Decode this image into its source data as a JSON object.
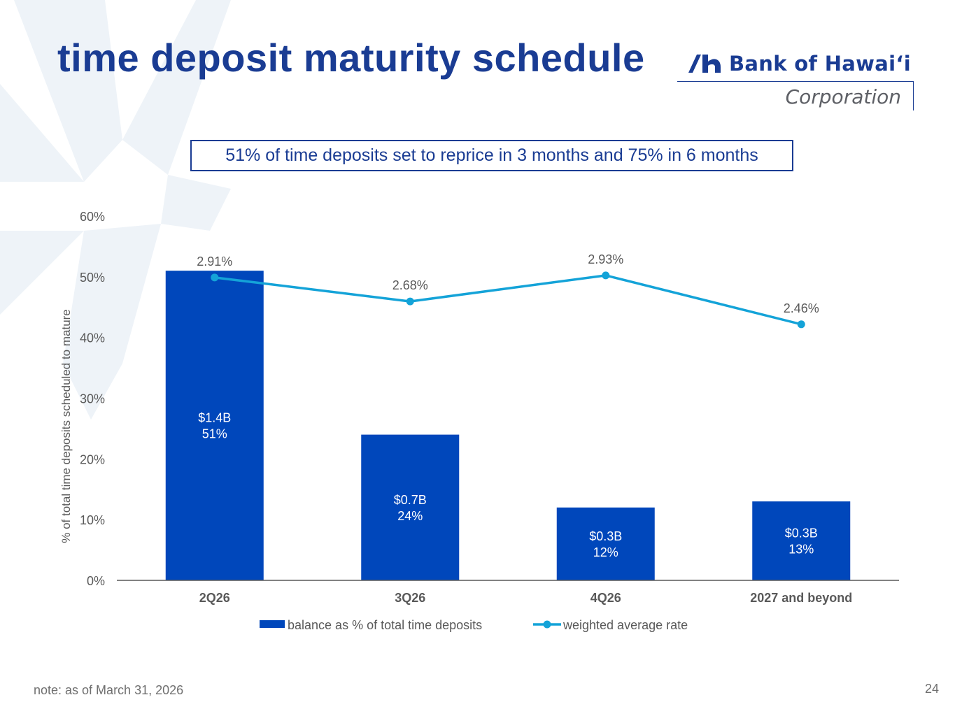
{
  "page": {
    "title": "time deposit maturity schedule",
    "callout": "51% of time deposits set to reprice in 3 months and 75% in 6 months",
    "note": "note: as of March 31, 2026",
    "page_number": "24"
  },
  "logo": {
    "name": "Bank of Hawai‘i",
    "subtitle": "Corporation",
    "color": "#1a3c93"
  },
  "colors": {
    "bar": "#0047bb",
    "line": "#14a3d8",
    "title": "#1a3c93",
    "tick_text": "#595959",
    "rate_label": "#595959",
    "axis": "#595959"
  },
  "chart_data": {
    "type": "bar",
    "categories": [
      "2Q26",
      "3Q26",
      "4Q26",
      "2027 and beyond"
    ],
    "series": [
      {
        "name": "balance as % of total time deposits",
        "kind": "bar",
        "values": [
          51,
          24,
          12,
          13
        ],
        "labels": [
          [
            "$1.4B",
            "51%"
          ],
          [
            "$0.7B",
            "24%"
          ],
          [
            "$0.3B",
            "12%"
          ],
          [
            "$0.3B",
            "13%"
          ]
        ]
      },
      {
        "name": "weighted average rate",
        "kind": "line",
        "values": [
          2.91,
          2.68,
          2.93,
          2.46
        ],
        "labels": [
          "2.91%",
          "2.68%",
          "2.93%",
          "2.46%"
        ]
      }
    ],
    "ylabel": "% of total time deposits scheduled to mature",
    "ylim": [
      0,
      60
    ],
    "yticks": [
      0,
      10,
      20,
      30,
      40,
      50,
      60
    ],
    "ytick_labels": [
      "0%",
      "10%",
      "20%",
      "30%",
      "40%",
      "50%",
      "60%"
    ],
    "secondary_ylim": [
      0,
      3.5
    ],
    "grid": false,
    "legend_position": "bottom"
  }
}
